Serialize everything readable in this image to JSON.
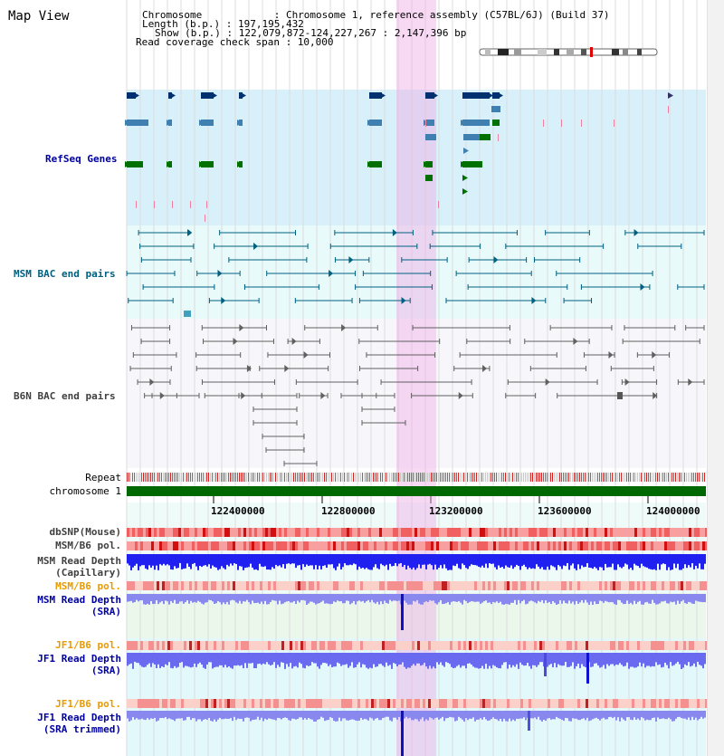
{
  "title": "Map View",
  "info": {
    "chromosome": "Chromosome            : Chromosome 1, reference assembly (C57BL/6J) (Build 37)",
    "length": "Length (b.p.) : 197,195,432",
    "show": "Show (b.p.) : 122,079,872-124,227,267 : 2,147,396 bp",
    "span": "Read coverage check span : 10,000"
  },
  "tracks": {
    "refseq": "RefSeq Genes",
    "msm_bac": "MSM BAC end pairs",
    "b6n_bac": "B6N BAC end pairs",
    "repeat": "Repeat",
    "chromosome": "chromosome 1",
    "dbsnp": "dbSNP(Mouse)",
    "msm_b6_pol_1": "MSM/B6 pol.",
    "msm_depth_cap_1": "MSM Read Depth",
    "msm_depth_cap_2": "(Capillary)",
    "msm_b6_pol_2": "MSM/B6 pol.",
    "msm_depth_sra_1": "MSM Read Depth",
    "msm_depth_sra_2": "(SRA)",
    "jf1_b6_pol_1": "JF1/B6 pol.",
    "jf1_depth_sra_1": "JF1 Read Depth",
    "jf1_depth_sra_2": "(SRA)",
    "jf1_b6_pol_2": "JF1/B6 pol.",
    "jf1_depth_trim_1": "JF1 Read Depth",
    "jf1_depth_trim_2": "(SRA trimmed)"
  },
  "axis": {
    "ticks": [
      "122400000",
      "122800000",
      "123200000",
      "123600000",
      "124000000"
    ]
  },
  "colors": {
    "highlight": "#f6d0f0",
    "refseq_bg": "#d8f0fa",
    "msm_bg": "#e8fafa",
    "b6n_bg": "#f7f7fb",
    "chromosome": "#006800",
    "depth": "#3030f0",
    "depth_light": "#8080f0",
    "pol": "#f07070"
  }
}
